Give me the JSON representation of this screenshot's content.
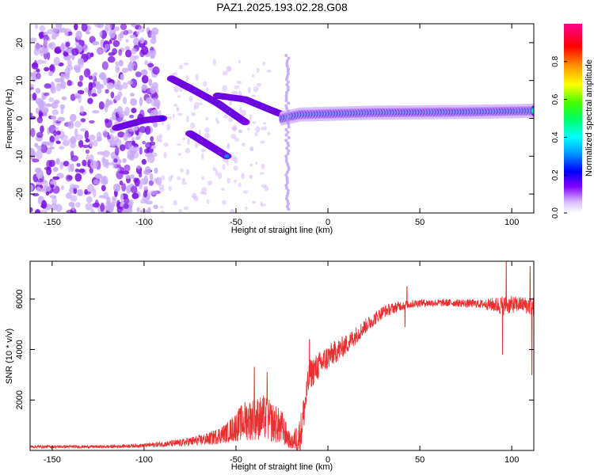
{
  "title": "PAZ1.2025.193.02.28.G08",
  "chart_data": [
    {
      "type": "heatmap",
      "xlabel": "Height of straight line (km)",
      "ylabel": "Frequency (Hz)",
      "xlim": [
        -162,
        112
      ],
      "ylim": [
        -25,
        25
      ],
      "xticks": [
        -150,
        -100,
        -50,
        0,
        50,
        100
      ],
      "yticks": [
        -20,
        -10,
        0,
        10,
        20
      ],
      "colorbar": {
        "label": "Normalized spectral amplitude",
        "range": [
          0,
          1
        ],
        "ticks": [
          0.0,
          0.2,
          0.4,
          0.6,
          0.8
        ],
        "colormap": [
          "#ffffff",
          "#c8a0ff",
          "#7000e0",
          "#0000ff",
          "#00c0ff",
          "#00ff80",
          "#80ff00",
          "#ffff00",
          "#ff8000",
          "#ff0000",
          "#ff0080"
        ]
      },
      "main_ridge": [
        {
          "x": -25,
          "y": 0.0
        },
        {
          "x": -15,
          "y": 1.0
        },
        {
          "x": 0,
          "y": 1.2
        },
        {
          "x": 25,
          "y": 1.5
        },
        {
          "x": 50,
          "y": 1.6
        },
        {
          "x": 75,
          "y": 1.7
        },
        {
          "x": 100,
          "y": 1.9
        },
        {
          "x": 112,
          "y": 2.0
        }
      ],
      "branches": [
        {
          "name": "",
          "points": [
            {
              "x": -115,
              "y": -2.5
            },
            {
              "x": -100,
              "y": -0.5
            },
            {
              "x": -90,
              "y": 0.0
            }
          ]
        },
        {
          "name": "",
          "points": [
            {
              "x": -85,
              "y": 10.5
            },
            {
              "x": -75,
              "y": 8.0
            },
            {
              "x": -60,
              "y": 4.0
            },
            {
              "x": -45,
              "y": -1.0
            }
          ]
        },
        {
          "name": "",
          "points": [
            {
              "x": -75,
              "y": -4.0
            },
            {
              "x": -65,
              "y": -7.0
            },
            {
              "x": -55,
              "y": -10.0
            }
          ]
        },
        {
          "name": "",
          "points": [
            {
              "x": -60,
              "y": 6.0
            },
            {
              "x": -45,
              "y": 5.0
            },
            {
              "x": -30,
              "y": 2.0
            },
            {
              "x": -22,
              "y": 0.5
            }
          ]
        }
      ]
    },
    {
      "type": "line",
      "xlabel": "Height of straight line (km)",
      "ylabel": "SNR (10 * v/v)",
      "xlim": [
        -162,
        112
      ],
      "ylim": [
        0,
        7500
      ],
      "xticks": [
        -150,
        -100,
        -50,
        0,
        50,
        100
      ],
      "yticks": [
        2000,
        4000,
        6000
      ],
      "color": "#e83030",
      "envelope": [
        {
          "x": -162,
          "mean": 150,
          "noise": 60
        },
        {
          "x": -120,
          "mean": 150,
          "noise": 60
        },
        {
          "x": -100,
          "mean": 200,
          "noise": 80
        },
        {
          "x": -80,
          "mean": 300,
          "noise": 150
        },
        {
          "x": -65,
          "mean": 450,
          "noise": 250
        },
        {
          "x": -55,
          "mean": 700,
          "noise": 400
        },
        {
          "x": -45,
          "mean": 1200,
          "noise": 800
        },
        {
          "x": -35,
          "mean": 1300,
          "noise": 900
        },
        {
          "x": -25,
          "mean": 900,
          "noise": 700
        },
        {
          "x": -20,
          "mean": 300,
          "noise": 250
        },
        {
          "x": -15,
          "mean": 600,
          "noise": 800
        },
        {
          "x": -10,
          "mean": 3000,
          "noise": 600
        },
        {
          "x": 0,
          "mean": 3700,
          "noise": 500
        },
        {
          "x": 10,
          "mean": 4200,
          "noise": 400
        },
        {
          "x": 20,
          "mean": 4900,
          "noise": 300
        },
        {
          "x": 30,
          "mean": 5500,
          "noise": 250
        },
        {
          "x": 40,
          "mean": 5750,
          "noise": 200
        },
        {
          "x": 50,
          "mean": 5850,
          "noise": 150
        },
        {
          "x": 70,
          "mean": 5850,
          "noise": 150
        },
        {
          "x": 85,
          "mean": 5800,
          "noise": 180
        },
        {
          "x": 95,
          "mean": 5750,
          "noise": 400
        },
        {
          "x": 105,
          "mean": 5800,
          "noise": 300
        },
        {
          "x": 112,
          "mean": 5700,
          "noise": 400
        }
      ],
      "spikes": [
        {
          "x": -40,
          "y": 3300
        },
        {
          "x": -33,
          "y": 3100
        },
        {
          "x": -10,
          "y": 4400
        },
        {
          "x": 43,
          "y": 6500
        },
        {
          "x": 42,
          "y": 4900
        },
        {
          "x": 95,
          "y": 3800
        },
        {
          "x": 97,
          "y": 7500
        },
        {
          "x": 110,
          "y": 7300
        },
        {
          "x": 111,
          "y": 3000
        }
      ]
    }
  ]
}
